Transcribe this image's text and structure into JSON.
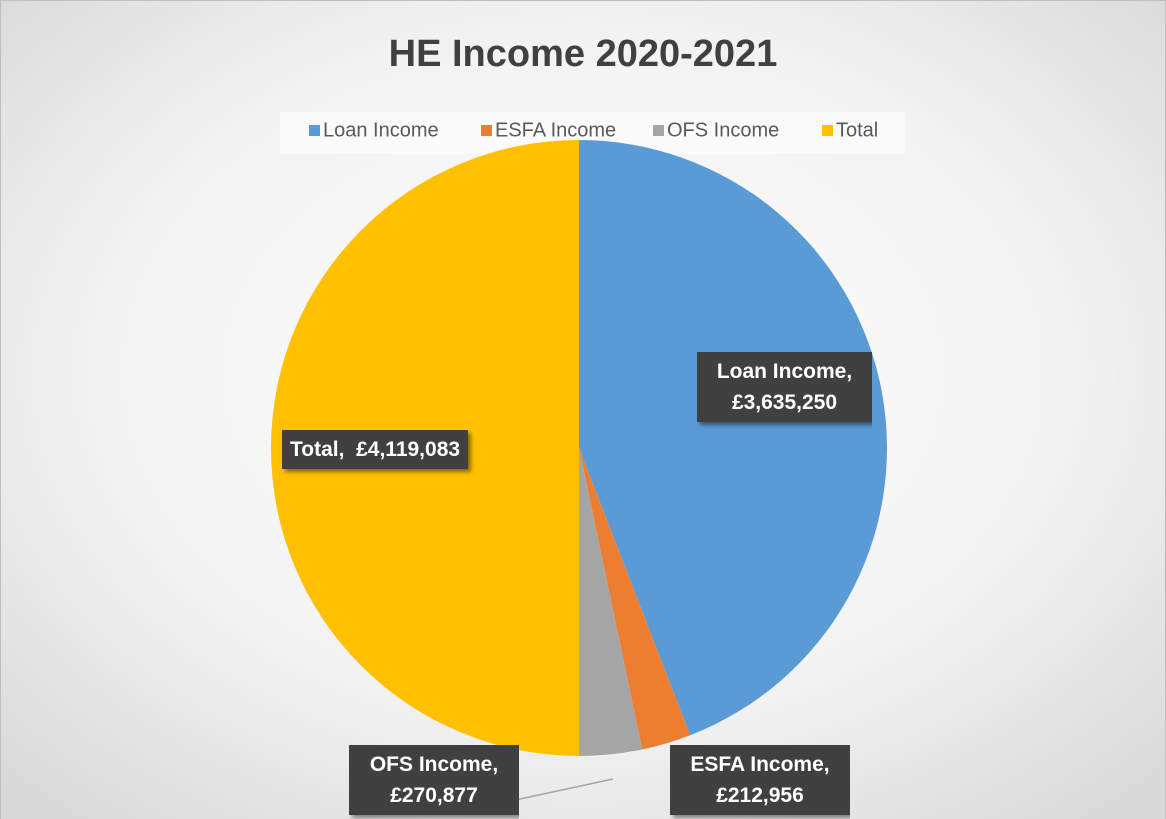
{
  "chart_data": {
    "type": "pie",
    "title": "HE Income 2020-2021",
    "categories": [
      "Loan Income",
      "ESFA Income",
      "OFS Income",
      "Total"
    ],
    "values": [
      3635250,
      212956,
      270877,
      4119083
    ],
    "value_labels": [
      "Loan Income, £3,635,250",
      "ESFA Income, £212,956",
      "OFS Income, £270,877",
      "Total,  £4,119,083"
    ],
    "colors": [
      "#5b9bd5",
      "#ed7d31",
      "#a5a5a5",
      "#ffc000"
    ],
    "legend": "top"
  }
}
